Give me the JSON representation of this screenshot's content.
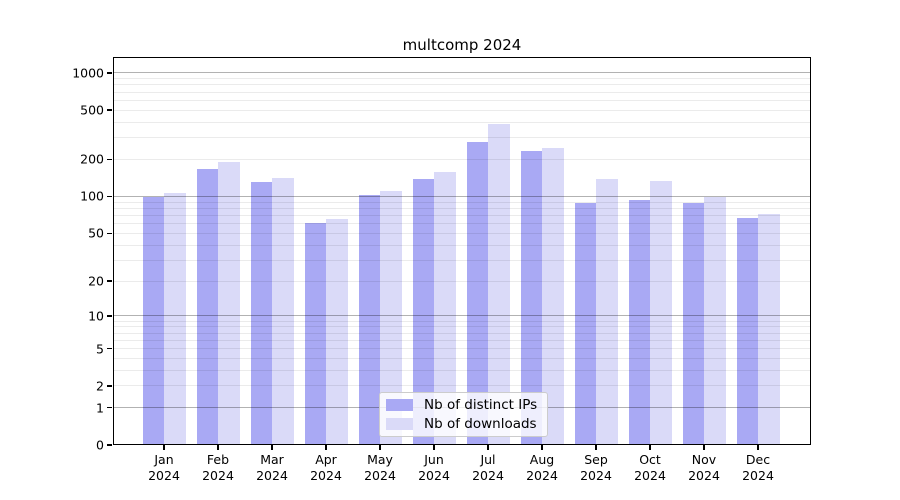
{
  "chart_data": {
    "type": "bar",
    "title": "multcomp 2024",
    "categories": [
      "Jan",
      "Feb",
      "Mar",
      "Apr",
      "May",
      "Jun",
      "Jul",
      "Aug",
      "Sep",
      "Oct",
      "Nov",
      "Dec"
    ],
    "category_year": "2024",
    "series": [
      {
        "name": "Nb of distinct IPs",
        "color": "#a9a9f4",
        "values": [
          99,
          167,
          131,
          61,
          103,
          139,
          277,
          235,
          88,
          93,
          88,
          67
        ]
      },
      {
        "name": "Nb of downloads",
        "color": "#dadaf8",
        "values": [
          106,
          190,
          140,
          65,
          111,
          159,
          388,
          248,
          139,
          134,
          99,
          72
        ]
      }
    ],
    "xlabel": "",
    "ylabel": "",
    "y_scale": "log10(1+x)",
    "y_ticks": [
      0,
      1,
      2,
      5,
      10,
      20,
      50,
      100,
      200,
      500,
      1000
    ],
    "ylim": [
      0,
      1300
    ],
    "grid": true,
    "grid_major_color": "#b3b3b3",
    "grid_minor_color": "#ececec",
    "legend_position": "bottom-center",
    "frame_color": "#000000",
    "background_color": "#ffffff"
  }
}
